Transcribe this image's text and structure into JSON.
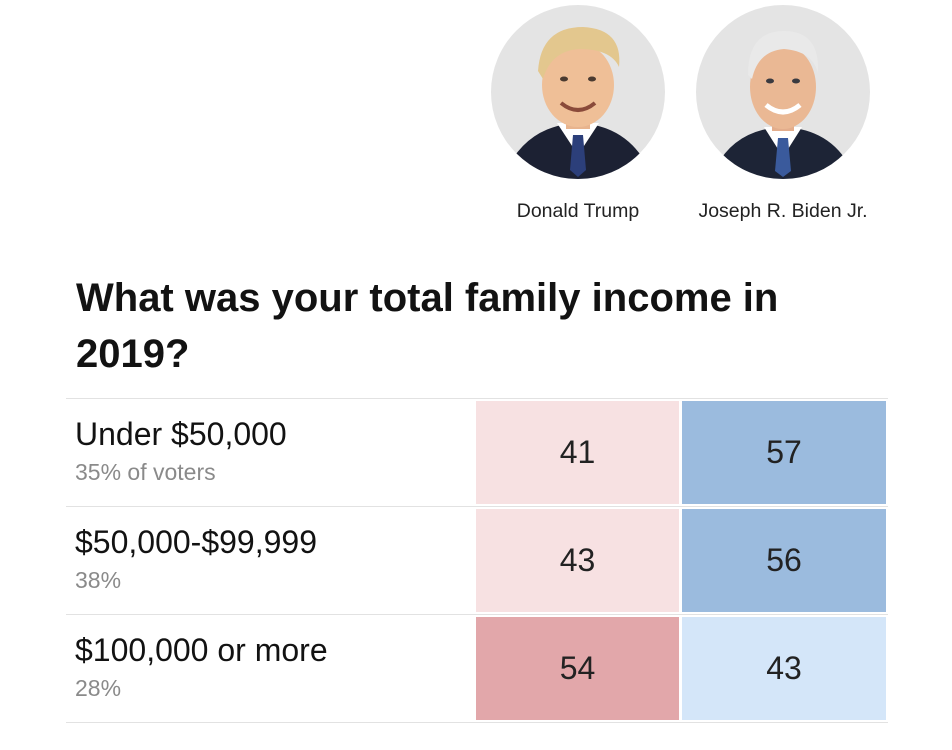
{
  "candidates": [
    {
      "name": "Donald Trump",
      "party": "republican",
      "color": "#e2a7aa"
    },
    {
      "name": "Joseph R. Biden Jr.",
      "party": "democrat",
      "color": "#9bbbde"
    }
  ],
  "chart_data": {
    "type": "table",
    "title": "What was your total family income in 2019?",
    "columns": [
      "Donald Trump",
      "Joseph R. Biden Jr."
    ],
    "rows": [
      {
        "label": "Under $50,000",
        "share": "35% of voters",
        "values": [
          41,
          57
        ],
        "colors": [
          "#f7e1e2",
          "#9bbbde"
        ]
      },
      {
        "label": "$50,000-$99,999",
        "share": "38%",
        "values": [
          43,
          56
        ],
        "colors": [
          "#f7e1e2",
          "#9bbbde"
        ]
      },
      {
        "label": "$100,000 or more",
        "share": "28%",
        "values": [
          54,
          43
        ],
        "colors": [
          "#e2a7aa",
          "#d4e6f9"
        ]
      }
    ]
  }
}
